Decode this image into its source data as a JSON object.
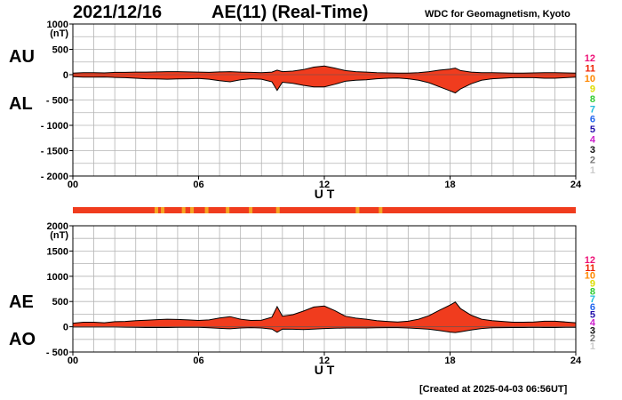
{
  "header": {
    "date": "2021/12/16",
    "title": "AE(11) (Real-Time)",
    "credit": "WDC for Geomagnetism, Kyoto",
    "created": "[Created at 2025-04-03 06:56UT]"
  },
  "colors": {
    "fill": "#f03c1e",
    "fill_alt": "#f5a623",
    "trace": "#000000",
    "grid": "#b4b4b4"
  },
  "station_count_legend": [
    {
      "label": "12",
      "color": "#ee1177"
    },
    {
      "label": "11",
      "color": "#ee2200"
    },
    {
      "label": "10",
      "color": "#ff8800"
    },
    {
      "label": "9",
      "color": "#dddd00"
    },
    {
      "label": "8",
      "color": "#33cc33"
    },
    {
      "label": "7",
      "color": "#22bbdd"
    },
    {
      "label": "6",
      "color": "#2266ee"
    },
    {
      "label": "5",
      "color": "#2211aa"
    },
    {
      "label": "4",
      "color": "#cc22cc"
    },
    {
      "label": "3",
      "color": "#111111"
    },
    {
      "label": "2",
      "color": "#777777"
    },
    {
      "label": "1",
      "color": "#cccccc"
    }
  ],
  "chart_data": [
    {
      "type": "area",
      "panel": "AU/AL",
      "series_labels": [
        "AU",
        "AL"
      ],
      "unit": "(nT)",
      "xlabel": "U T",
      "xlim": [
        0,
        24
      ],
      "xticks": [
        0,
        6,
        12,
        18,
        24
      ],
      "xtick_labels": [
        "00",
        "06",
        "12",
        "18",
        "24"
      ],
      "ylim": [
        -2000,
        1000
      ],
      "yticks": [
        1000,
        500,
        0,
        -500,
        -1000,
        -1500,
        -2000
      ],
      "ytick_labels": [
        "1000",
        "500",
        "0",
        "- 500",
        "- 1000",
        "- 1500",
        "- 2000"
      ],
      "grid": true,
      "x": [
        0,
        0.5,
        1,
        1.5,
        2,
        2.5,
        3,
        3.5,
        4,
        4.5,
        5,
        5.5,
        6,
        6.5,
        7,
        7.5,
        8,
        8.5,
        9,
        9.5,
        9.75,
        10,
        10.5,
        11,
        11.5,
        12,
        12.5,
        13,
        13.5,
        14,
        14.5,
        15,
        15.5,
        16,
        16.5,
        17,
        17.5,
        18,
        18.25,
        18.5,
        19,
        19.5,
        20,
        20.5,
        21,
        21.5,
        22,
        22.5,
        23,
        23.5,
        24
      ],
      "series": [
        {
          "name": "AU",
          "values": [
            30,
            40,
            40,
            35,
            45,
            45,
            50,
            50,
            55,
            60,
            60,
            55,
            50,
            45,
            55,
            60,
            50,
            45,
            40,
            50,
            90,
            60,
            70,
            100,
            150,
            170,
            130,
            80,
            60,
            50,
            40,
            35,
            30,
            30,
            40,
            60,
            90,
            110,
            130,
            80,
            50,
            40,
            40,
            35,
            30,
            30,
            35,
            40,
            40,
            35,
            30
          ]
        },
        {
          "name": "AL",
          "values": [
            -40,
            -50,
            -50,
            -45,
            -55,
            -60,
            -70,
            -80,
            -85,
            -90,
            -85,
            -80,
            -75,
            -90,
            -120,
            -140,
            -100,
            -80,
            -90,
            -140,
            -310,
            -150,
            -170,
            -210,
            -240,
            -240,
            -190,
            -130,
            -110,
            -100,
            -80,
            -70,
            -65,
            -80,
            -110,
            -160,
            -240,
            -320,
            -360,
            -280,
            -180,
            -110,
            -80,
            -70,
            -60,
            -60,
            -60,
            -70,
            -70,
            -60,
            -50
          ]
        }
      ]
    },
    {
      "type": "area",
      "panel": "AE/AO",
      "series_labels": [
        "AE",
        "AO"
      ],
      "unit": "(nT)",
      "xlabel": "U T",
      "xlim": [
        0,
        24
      ],
      "xticks": [
        0,
        6,
        12,
        18,
        24
      ],
      "xtick_labels": [
        "00",
        "06",
        "12",
        "18",
        "24"
      ],
      "ylim": [
        -500,
        2000
      ],
      "yticks": [
        2000,
        1500,
        1000,
        500,
        0,
        -500
      ],
      "ytick_labels": [
        "2000",
        "1500",
        "1000",
        "500",
        "0",
        "- 500"
      ],
      "grid": true,
      "x": [
        0,
        0.5,
        1,
        1.5,
        2,
        2.5,
        3,
        3.5,
        4,
        4.5,
        5,
        5.5,
        6,
        6.5,
        7,
        7.5,
        8,
        8.5,
        9,
        9.5,
        9.75,
        10,
        10.5,
        11,
        11.5,
        12,
        12.5,
        13,
        13.5,
        14,
        14.5,
        15,
        15.5,
        16,
        16.5,
        17,
        17.5,
        18,
        18.25,
        18.5,
        19,
        19.5,
        20,
        20.5,
        21,
        21.5,
        22,
        22.5,
        23,
        23.5,
        24
      ],
      "series": [
        {
          "name": "AE",
          "values": [
            70,
            90,
            90,
            80,
            100,
            105,
            120,
            130,
            140,
            150,
            145,
            135,
            125,
            135,
            175,
            200,
            150,
            125,
            130,
            190,
            400,
            210,
            240,
            310,
            390,
            410,
            320,
            210,
            170,
            150,
            120,
            105,
            95,
            110,
            150,
            220,
            330,
            430,
            490,
            360,
            230,
            150,
            120,
            105,
            90,
            90,
            95,
            110,
            110,
            95,
            80
          ]
        },
        {
          "name": "AO",
          "values": [
            -5,
            -5,
            -5,
            -5,
            -5,
            -8,
            -10,
            -15,
            -15,
            -15,
            -12,
            -12,
            -12,
            -22,
            -32,
            -40,
            -25,
            -18,
            -25,
            -45,
            -110,
            -45,
            -50,
            -55,
            -45,
            -35,
            -30,
            -25,
            -25,
            -25,
            -20,
            -18,
            -18,
            -25,
            -35,
            -50,
            -75,
            -105,
            -115,
            -100,
            -65,
            -35,
            -20,
            -18,
            -15,
            -15,
            -12,
            -15,
            -15,
            -12,
            -10
          ]
        }
      ]
    }
  ]
}
